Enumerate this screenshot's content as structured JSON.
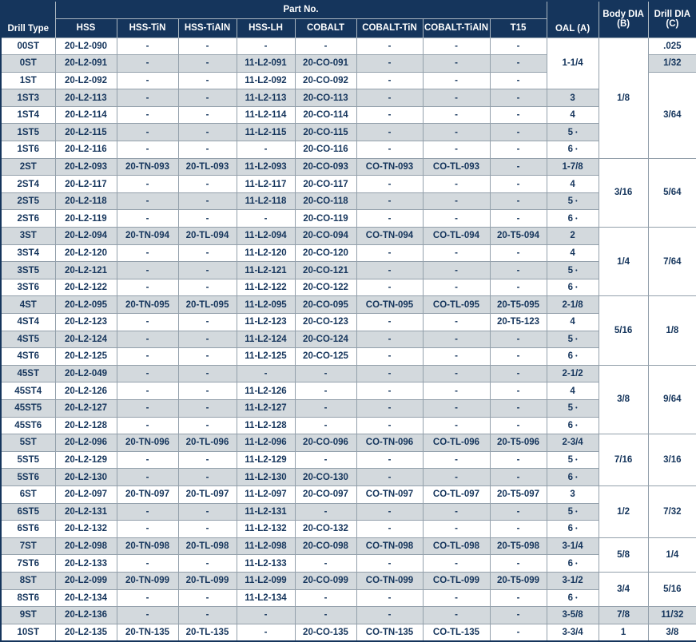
{
  "colors": {
    "header_bg": "#15355c",
    "stripe_row": "#d3d9dd",
    "grid_border": "#93a0ab",
    "text": "#15355c"
  },
  "table": {
    "header": {
      "drill_type": "Drill Type",
      "part_no_group": "Part No.",
      "part_columns": [
        "HSS",
        "HSS-TiN",
        "HSS-TiAlN",
        "HSS-LH",
        "COBALT",
        "COBALT-TiN",
        "COBALT-TiAlN",
        "T15"
      ],
      "oal": "OAL (A)",
      "body_dia_line1": "Body DIA",
      "body_dia_line2": "(B)",
      "drill_dia_line1": "Drill DIA",
      "drill_dia_line2": "(C)"
    },
    "rows": [
      {
        "type": "00ST",
        "parts": [
          "20-L2-090",
          "-",
          "-",
          "-",
          "-",
          "-",
          "-",
          "-"
        ],
        "oal": {
          "text": "1-1/4",
          "rowspan": 3
        },
        "body": {
          "text": "1/8",
          "rowspan": 7
        },
        "drill": {
          "text": ".025",
          "rowspan": 1
        }
      },
      {
        "type": "0ST",
        "parts": [
          "20-L2-091",
          "-",
          "-",
          "11-L2-091",
          "20-CO-091",
          "-",
          "-",
          "-"
        ],
        "drill": {
          "text": "1/32",
          "rowspan": 1
        }
      },
      {
        "type": "1ST",
        "parts": [
          "20-L2-092",
          "-",
          "-",
          "11-L2-092",
          "20-CO-092",
          "-",
          "-",
          "-"
        ],
        "drill": {
          "text": "3/64",
          "rowspan": 5
        }
      },
      {
        "type": "1ST3",
        "parts": [
          "20-L2-113",
          "-",
          "-",
          "11-L2-113",
          "20-CO-113",
          "-",
          "-",
          "-"
        ],
        "oal": {
          "text": "3",
          "rowspan": 1
        }
      },
      {
        "type": "1ST4",
        "parts": [
          "20-L2-114",
          "-",
          "-",
          "11-L2-114",
          "20-CO-114",
          "-",
          "-",
          "-"
        ],
        "oal": {
          "text": "4",
          "rowspan": 1
        }
      },
      {
        "type": "1ST5",
        "parts": [
          "20-L2-115",
          "-",
          "-",
          "11-L2-115",
          "20-CO-115",
          "-",
          "-",
          "-"
        ],
        "oal": {
          "text": "5 •",
          "rowspan": 1
        }
      },
      {
        "type": "1ST6",
        "parts": [
          "20-L2-116",
          "-",
          "-",
          "-",
          "20-CO-116",
          "-",
          "-",
          "-"
        ],
        "oal": {
          "text": "6 •",
          "rowspan": 1
        }
      },
      {
        "type": "2ST",
        "parts": [
          "20-L2-093",
          "20-TN-093",
          "20-TL-093",
          "11-L2-093",
          "20-CO-093",
          "CO-TN-093",
          "CO-TL-093",
          "-"
        ],
        "oal": {
          "text": "1-7/8",
          "rowspan": 1
        },
        "body": {
          "text": "3/16",
          "rowspan": 4
        },
        "drill": {
          "text": "5/64",
          "rowspan": 4
        }
      },
      {
        "type": "2ST4",
        "parts": [
          "20-L2-117",
          "-",
          "-",
          "11-L2-117",
          "20-CO-117",
          "-",
          "-",
          "-"
        ],
        "oal": {
          "text": "4",
          "rowspan": 1
        }
      },
      {
        "type": "2ST5",
        "parts": [
          "20-L2-118",
          "-",
          "-",
          "11-L2-118",
          "20-CO-118",
          "-",
          "-",
          "-"
        ],
        "oal": {
          "text": "5 •",
          "rowspan": 1
        }
      },
      {
        "type": "2ST6",
        "parts": [
          "20-L2-119",
          "-",
          "-",
          "-",
          "20-CO-119",
          "-",
          "-",
          "-"
        ],
        "oal": {
          "text": "6 •",
          "rowspan": 1
        }
      },
      {
        "type": "3ST",
        "parts": [
          "20-L2-094",
          "20-TN-094",
          "20-TL-094",
          "11-L2-094",
          "20-CO-094",
          "CO-TN-094",
          "CO-TL-094",
          "20-T5-094"
        ],
        "oal": {
          "text": "2",
          "rowspan": 1
        },
        "body": {
          "text": "1/4",
          "rowspan": 4
        },
        "drill": {
          "text": "7/64",
          "rowspan": 4
        }
      },
      {
        "type": "3ST4",
        "parts": [
          "20-L2-120",
          "-",
          "-",
          "11-L2-120",
          "20-CO-120",
          "-",
          "-",
          "-"
        ],
        "oal": {
          "text": "4",
          "rowspan": 1
        }
      },
      {
        "type": "3ST5",
        "parts": [
          "20-L2-121",
          "-",
          "-",
          "11-L2-121",
          "20-CO-121",
          "-",
          "-",
          "-"
        ],
        "oal": {
          "text": "5 •",
          "rowspan": 1
        }
      },
      {
        "type": "3ST6",
        "parts": [
          "20-L2-122",
          "-",
          "-",
          "11-L2-122",
          "20-CO-122",
          "-",
          "-",
          "-"
        ],
        "oal": {
          "text": "6 •",
          "rowspan": 1
        }
      },
      {
        "type": "4ST",
        "parts": [
          "20-L2-095",
          "20-TN-095",
          "20-TL-095",
          "11-L2-095",
          "20-CO-095",
          "CO-TN-095",
          "CO-TL-095",
          "20-T5-095"
        ],
        "oal": {
          "text": "2-1/8",
          "rowspan": 1
        },
        "body": {
          "text": "5/16",
          "rowspan": 4
        },
        "drill": {
          "text": "1/8",
          "rowspan": 4
        }
      },
      {
        "type": "4ST4",
        "parts": [
          "20-L2-123",
          "-",
          "-",
          "11-L2-123",
          "20-CO-123",
          "-",
          "-",
          "20-T5-123"
        ],
        "oal": {
          "text": "4",
          "rowspan": 1
        }
      },
      {
        "type": "4ST5",
        "parts": [
          "20-L2-124",
          "-",
          "-",
          "11-L2-124",
          "20-CO-124",
          "-",
          "-",
          "-"
        ],
        "oal": {
          "text": "5 •",
          "rowspan": 1
        }
      },
      {
        "type": "4ST6",
        "parts": [
          "20-L2-125",
          "-",
          "-",
          "11-L2-125",
          "20-CO-125",
          "-",
          "-",
          "-"
        ],
        "oal": {
          "text": "6 •",
          "rowspan": 1
        }
      },
      {
        "type": "45ST",
        "parts": [
          "20-L2-049",
          "-",
          "-",
          "-",
          "-",
          "-",
          "-",
          "-"
        ],
        "oal": {
          "text": "2-1/2",
          "rowspan": 1
        },
        "body": {
          "text": "3/8",
          "rowspan": 4
        },
        "drill": {
          "text": "9/64",
          "rowspan": 4
        }
      },
      {
        "type": "45ST4",
        "parts": [
          "20-L2-126",
          "-",
          "-",
          "11-L2-126",
          "-",
          "-",
          "-",
          "-"
        ],
        "oal": {
          "text": "4",
          "rowspan": 1
        }
      },
      {
        "type": "45ST5",
        "parts": [
          "20-L2-127",
          "-",
          "-",
          "11-L2-127",
          "-",
          "-",
          "-",
          "-"
        ],
        "oal": {
          "text": "5 •",
          "rowspan": 1
        }
      },
      {
        "type": "45ST6",
        "parts": [
          "20-L2-128",
          "-",
          "-",
          "11-L2-128",
          "-",
          "-",
          "-",
          "-"
        ],
        "oal": {
          "text": "6 •",
          "rowspan": 1
        }
      },
      {
        "type": "5ST",
        "parts": [
          "20-L2-096",
          "20-TN-096",
          "20-TL-096",
          "11-L2-096",
          "20-CO-096",
          "CO-TN-096",
          "CO-TL-096",
          "20-T5-096"
        ],
        "oal": {
          "text": "2-3/4",
          "rowspan": 1
        },
        "body": {
          "text": "7/16",
          "rowspan": 3
        },
        "drill": {
          "text": "3/16",
          "rowspan": 3
        }
      },
      {
        "type": "5ST5",
        "parts": [
          "20-L2-129",
          "-",
          "-",
          "11-L2-129",
          "-",
          "-",
          "-",
          "-"
        ],
        "oal": {
          "text": "5 •",
          "rowspan": 1
        }
      },
      {
        "type": "5ST6",
        "parts": [
          "20-L2-130",
          "-",
          "-",
          "11-L2-130",
          "20-CO-130",
          "-",
          "-",
          "-"
        ],
        "oal": {
          "text": "6 •",
          "rowspan": 1
        }
      },
      {
        "type": "6ST",
        "parts": [
          "20-L2-097",
          "20-TN-097",
          "20-TL-097",
          "11-L2-097",
          "20-CO-097",
          "CO-TN-097",
          "CO-TL-097",
          "20-T5-097"
        ],
        "oal": {
          "text": "3",
          "rowspan": 1
        },
        "body": {
          "text": "1/2",
          "rowspan": 3
        },
        "drill": {
          "text": "7/32",
          "rowspan": 3
        }
      },
      {
        "type": "6ST5",
        "parts": [
          "20-L2-131",
          "-",
          "-",
          "11-L2-131",
          "-",
          "-",
          "-",
          "-"
        ],
        "oal": {
          "text": "5 •",
          "rowspan": 1
        }
      },
      {
        "type": "6ST6",
        "parts": [
          "20-L2-132",
          "-",
          "-",
          "11-L2-132",
          "20-CO-132",
          "-",
          "-",
          "-"
        ],
        "oal": {
          "text": "6 •",
          "rowspan": 1
        }
      },
      {
        "type": "7ST",
        "parts": [
          "20-L2-098",
          "20-TN-098",
          "20-TL-098",
          "11-L2-098",
          "20-CO-098",
          "CO-TN-098",
          "CO-TL-098",
          "20-T5-098"
        ],
        "oal": {
          "text": "3-1/4",
          "rowspan": 1
        },
        "body": {
          "text": "5/8",
          "rowspan": 2
        },
        "drill": {
          "text": "1/4",
          "rowspan": 2
        }
      },
      {
        "type": "7ST6",
        "parts": [
          "20-L2-133",
          "-",
          "-",
          "11-L2-133",
          "-",
          "-",
          "-",
          "-"
        ],
        "oal": {
          "text": "6 •",
          "rowspan": 1
        }
      },
      {
        "type": "8ST",
        "parts": [
          "20-L2-099",
          "20-TN-099",
          "20-TL-099",
          "11-L2-099",
          "20-CO-099",
          "CO-TN-099",
          "CO-TL-099",
          "20-T5-099"
        ],
        "oal": {
          "text": "3-1/2",
          "rowspan": 1
        },
        "body": {
          "text": "3/4",
          "rowspan": 2
        },
        "drill": {
          "text": "5/16",
          "rowspan": 2
        }
      },
      {
        "type": "8ST6",
        "parts": [
          "20-L2-134",
          "-",
          "-",
          "11-L2-134",
          "-",
          "-",
          "-",
          "-"
        ],
        "oal": {
          "text": "6 •",
          "rowspan": 1
        }
      },
      {
        "type": "9ST",
        "parts": [
          "20-L2-136",
          "-",
          "-",
          "-",
          "-",
          "-",
          "-",
          "-"
        ],
        "oal": {
          "text": "3-5/8",
          "rowspan": 1
        },
        "body": {
          "text": "7/8",
          "rowspan": 1
        },
        "drill": {
          "text": "11/32",
          "rowspan": 1
        }
      },
      {
        "type": "10ST",
        "parts": [
          "20-L2-135",
          "20-TN-135",
          "20-TL-135",
          "-",
          "20-CO-135",
          "CO-TN-135",
          "CO-TL-135",
          "-"
        ],
        "oal": {
          "text": "3-3/4",
          "rowspan": 1
        },
        "body": {
          "text": "1",
          "rowspan": 1
        },
        "drill": {
          "text": "3/8",
          "rowspan": 1
        }
      }
    ]
  }
}
